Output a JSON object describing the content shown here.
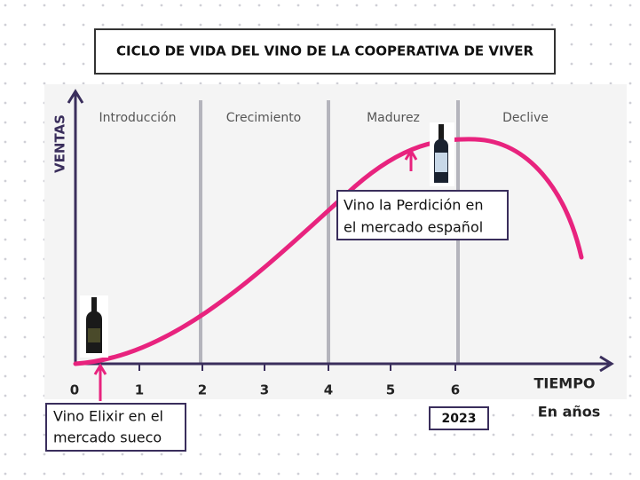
{
  "title": "CICLO DE VIDA DEL VINO DE LA COOPERATIVA DE VIVER",
  "stages": [
    "Introducción",
    "Crecimiento",
    "Madurez",
    "Declive"
  ],
  "axes": {
    "y_label": "VENTAS",
    "x_label": "TIEMPO",
    "x_unit": "En años",
    "x_ticks": [
      "0",
      "1",
      "2",
      "3",
      "4",
      "5",
      "6"
    ]
  },
  "annotations": [
    {
      "lines": [
        "Vino Elixir en el",
        "mercado sueco"
      ]
    },
    {
      "lines": [
        "Vino la Perdición en",
        "el mercado español"
      ]
    }
  ],
  "year_box": "2023"
}
